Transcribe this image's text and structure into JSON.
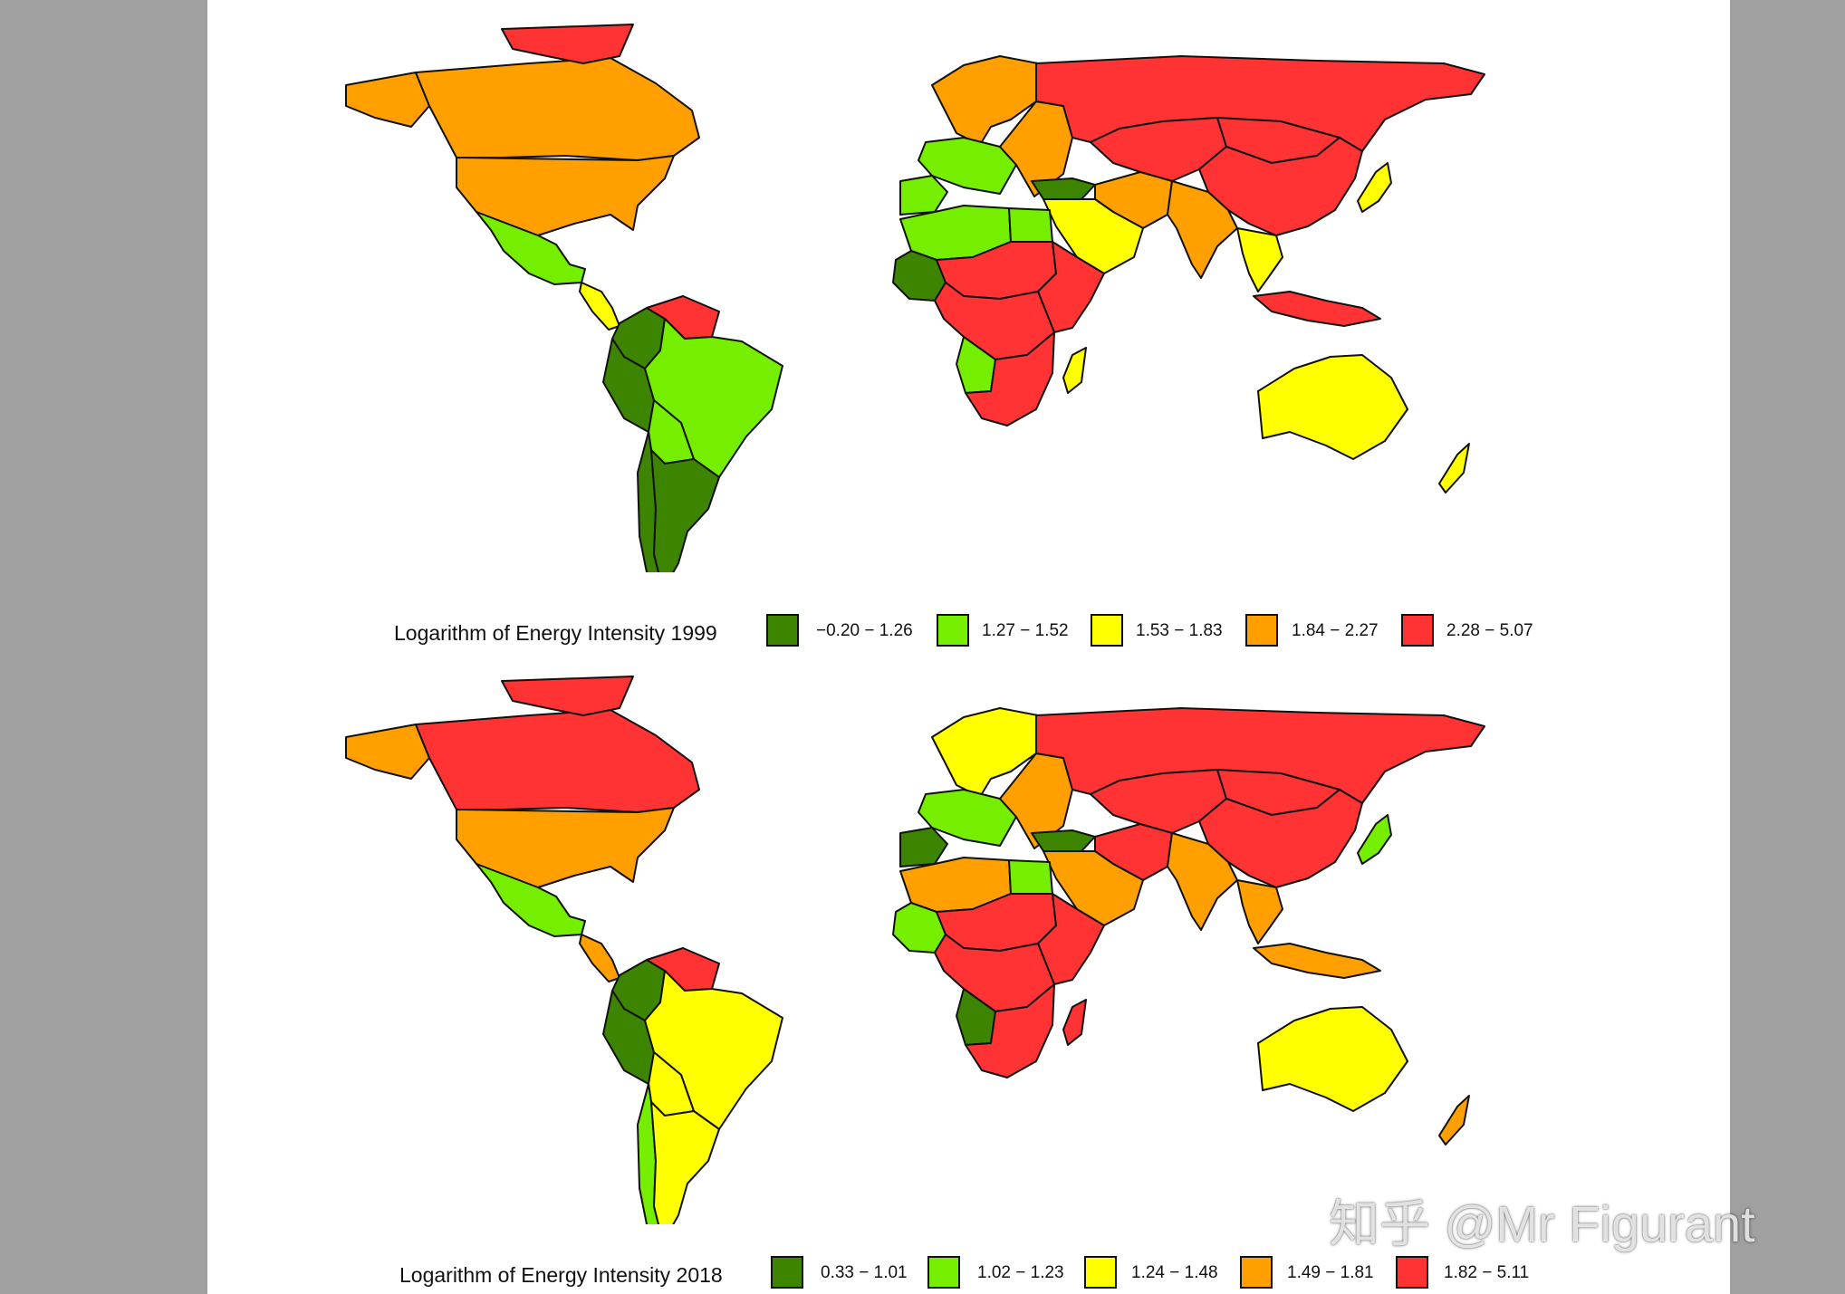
{
  "maps": [
    {
      "legend_title": "Logarithm of Energy Intensity 1999",
      "classes": [
        {
          "label": "−0.20 − 1.26",
          "color": "#3d8500"
        },
        {
          "label": "1.27 − 1.52",
          "color": "#76ee00"
        },
        {
          "label": "1.53 − 1.83",
          "color": "#ffff00"
        },
        {
          "label": "1.84 − 2.27",
          "color": "#ffa000"
        },
        {
          "label": "2.28 − 5.07",
          "color": "#ff3333"
        }
      ],
      "regions": {
        "canada": 3,
        "alaska": 3,
        "greenland": 4,
        "usa": 3,
        "mexico": 1,
        "central-america": 2,
        "colombia": 0,
        "venezuela": 4,
        "peru": 0,
        "brazil": 1,
        "bolivia": 1,
        "argentina": 0,
        "chile": 0,
        "western-europe": 1,
        "scandinavia": 3,
        "eastern-europe": 3,
        "iberia": 1,
        "russia": 4,
        "central-asia": 4,
        "china": 4,
        "mongolia": 4,
        "turkey": 0,
        "middle-east": 2,
        "iran": 3,
        "india": 3,
        "southeast-asia": 2,
        "japan": 2,
        "indonesia": 4,
        "north-africa": 1,
        "egypt": 1,
        "west-africa": 0,
        "sahel": 4,
        "east-africa": 4,
        "central-africa": 4,
        "angola": 1,
        "southern-africa": 4,
        "madagascar": 2,
        "australia": 2,
        "new-zealand": 2
      }
    },
    {
      "legend_title": "Logarithm of Energy Intensity 2018",
      "classes": [
        {
          "label": "0.33 − 1.01",
          "color": "#3d8500"
        },
        {
          "label": "1.02 − 1.23",
          "color": "#76ee00"
        },
        {
          "label": "1.24 − 1.48",
          "color": "#ffff00"
        },
        {
          "label": "1.49 − 1.81",
          "color": "#ffa000"
        },
        {
          "label": "1.82 − 5.11",
          "color": "#ff3333"
        }
      ],
      "regions": {
        "canada": 4,
        "alaska": 3,
        "greenland": 4,
        "usa": 3,
        "mexico": 1,
        "central-america": 3,
        "colombia": 0,
        "venezuela": 4,
        "peru": 0,
        "brazil": 2,
        "bolivia": 2,
        "argentina": 2,
        "chile": 1,
        "western-europe": 1,
        "scandinavia": 2,
        "eastern-europe": 3,
        "iberia": 0,
        "russia": 4,
        "central-asia": 4,
        "china": 4,
        "mongolia": 4,
        "turkey": 0,
        "middle-east": 3,
        "iran": 4,
        "india": 3,
        "southeast-asia": 3,
        "japan": 1,
        "indonesia": 3,
        "north-africa": 3,
        "egypt": 1,
        "west-africa": 1,
        "sahel": 4,
        "east-africa": 4,
        "central-africa": 4,
        "angola": 0,
        "southern-africa": 4,
        "madagascar": 4,
        "australia": 2,
        "new-zealand": 3
      }
    }
  ],
  "watermark": "知乎 @Mr Figurant"
}
